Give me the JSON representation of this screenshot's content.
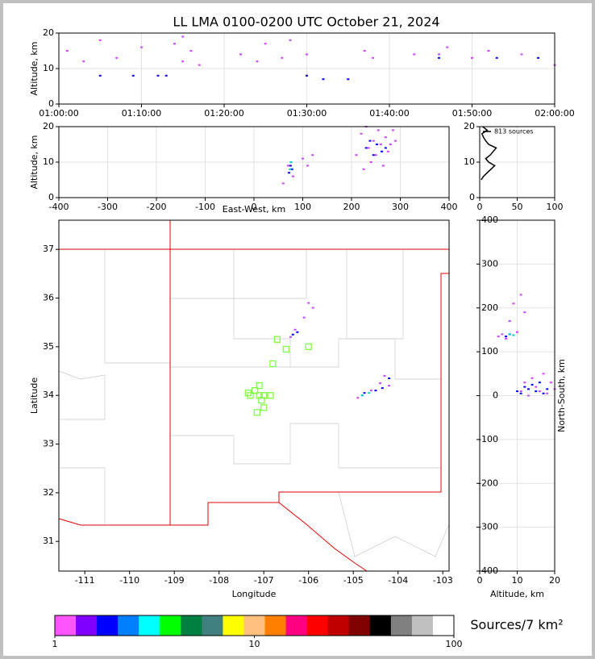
{
  "chart_data": [
    {
      "type": "scatter",
      "title": "LL LMA 0100-0200 UTC October 21, 2024",
      "y_label": "Altitude, km",
      "xlim": [
        0,
        60
      ],
      "xticks": [
        {
          "value": 0,
          "label": "01:00:00"
        },
        {
          "value": 10,
          "label": "01:10:00"
        },
        {
          "value": 20,
          "label": "01:20:00"
        },
        {
          "value": 30,
          "label": "01:30:00"
        },
        {
          "value": 40,
          "label": "01:40:00"
        },
        {
          "value": 50,
          "label": "01:50:00"
        },
        {
          "value": 60,
          "label": "02:00:00"
        }
      ],
      "ylim": [
        0,
        20
      ],
      "yticks": [
        0,
        10,
        20
      ],
      "grid": true,
      "series": [
        {
          "color": "#cc44ff",
          "x": [
            1,
            3,
            5,
            7,
            10,
            14,
            15,
            15,
            16,
            17,
            22,
            24,
            25,
            27,
            28,
            30,
            37,
            38,
            43,
            46,
            47,
            50,
            52,
            56,
            60
          ],
          "values": [
            15,
            12,
            18,
            13,
            16,
            17,
            12,
            19,
            15,
            11,
            14,
            12,
            17,
            13,
            18,
            14,
            15,
            13,
            14,
            14,
            16,
            13,
            15,
            14,
            11
          ]
        },
        {
          "color": "#0000ff",
          "x": [
            5,
            9,
            12,
            13,
            30,
            32,
            35,
            46,
            53,
            58
          ],
          "values": [
            8,
            8,
            8,
            8,
            8,
            7,
            7,
            13,
            13,
            13
          ]
        }
      ]
    },
    {
      "type": "scatter",
      "x_label": "East-West, km",
      "y_label": "Altitude, km",
      "xlim": [
        -400,
        400
      ],
      "xticks": [
        -400,
        -300,
        -200,
        -100,
        0,
        100,
        200,
        300,
        400
      ],
      "ylim": [
        0,
        20
      ],
      "yticks": [
        0,
        10,
        20
      ],
      "grid": true,
      "series": [
        {
          "color": "#cc44ff",
          "x": [
            60,
            70,
            80,
            100,
            110,
            120,
            210,
            220,
            225,
            230,
            235,
            240,
            245,
            250,
            255,
            260,
            265,
            270,
            275,
            280,
            285,
            290
          ],
          "values": [
            4,
            9,
            6,
            11,
            9,
            12,
            12,
            18,
            8,
            20,
            14,
            10,
            16,
            12,
            19,
            15,
            9,
            17,
            13,
            15,
            19,
            16
          ]
        },
        {
          "color": "#0000ff",
          "x": [
            72,
            75,
            78,
            230,
            238,
            245,
            252,
            262,
            270
          ],
          "values": [
            7,
            9,
            8,
            14,
            16,
            12,
            15,
            13,
            14
          ]
        },
        {
          "color": "#00cccc",
          "x": [
            74,
            76
          ],
          "values": [
            8,
            10
          ]
        }
      ]
    },
    {
      "type": "profile",
      "annotation": "813 sources",
      "color": "#000000",
      "xlim": [
        0,
        100
      ],
      "xticks": [
        0,
        50,
        100
      ],
      "ylim": [
        0,
        20
      ],
      "yticks": [
        0,
        10,
        20
      ],
      "grid": true,
      "y": [
        5,
        6,
        7,
        8,
        9,
        10,
        11,
        12,
        13,
        14,
        15,
        16,
        17,
        18,
        19,
        20
      ],
      "values": [
        2,
        5,
        10,
        15,
        20,
        12,
        8,
        14,
        18,
        22,
        12,
        8,
        5,
        3,
        10,
        4
      ]
    },
    {
      "type": "map",
      "x_label": "Longitude",
      "y_label": "Latitude",
      "xlim": [
        -111.58,
        -102.86
      ],
      "xticks": [
        -111,
        -110,
        -109,
        -108,
        -107,
        -106,
        -105,
        -104,
        -103
      ],
      "ylim": [
        30.39,
        37.6
      ],
      "yticks": [
        31,
        32,
        33,
        34,
        35,
        36,
        37
      ],
      "grid": false,
      "series": [
        {
          "color": "#cc44ff",
          "x": [
            -106.4,
            -106.3,
            -106.1,
            -106.0,
            -105.9,
            -104.9,
            -104.8,
            -104.6,
            -104.4,
            -104.3,
            -104.2
          ],
          "values": [
            35.2,
            35.35,
            35.6,
            35.9,
            35.8,
            33.95,
            34.0,
            34.1,
            34.25,
            34.4,
            34.2
          ]
        },
        {
          "color": "#0000ff",
          "x": [
            -106.35,
            -106.25,
            -104.75,
            -104.5,
            -104.35,
            -104.2
          ],
          "values": [
            35.25,
            35.3,
            34.05,
            34.1,
            34.15,
            34.35
          ]
        },
        {
          "color": "#00cccc",
          "x": [
            -104.8,
            -104.65
          ],
          "values": [
            34.0,
            34.05
          ]
        }
      ],
      "stations": {
        "color": "#80ff40",
        "x": [
          -107.3,
          -107.2,
          -107.1,
          -107.0,
          -107.05,
          -107.15,
          -106.8,
          -106.7,
          -106.5,
          -106.0,
          -107.0,
          -107.35,
          -106.85,
          -107.1
        ],
        "values": [
          34.0,
          34.1,
          34.2,
          34.0,
          33.9,
          33.65,
          34.65,
          35.15,
          34.95,
          35.0,
          33.75,
          34.05,
          34.0,
          34.0
        ]
      }
    },
    {
      "type": "scatter",
      "x_label": "Altitude, km",
      "y_label": "North-South, km",
      "xlim": [
        0,
        20
      ],
      "xticks": [
        0,
        10,
        20
      ],
      "ylim": [
        -400,
        400
      ],
      "yticks": [
        -400,
        -300,
        -200,
        -100,
        0,
        100,
        200,
        300,
        400
      ],
      "grid": true,
      "series": [
        {
          "color": "#cc44ff",
          "x": [
            5,
            6,
            7,
            8,
            9,
            10,
            11,
            12,
            13,
            14,
            15,
            16,
            17,
            18,
            19,
            20,
            11,
            12
          ],
          "values": [
            135,
            140,
            130,
            170,
            210,
            145,
            10,
            30,
            0,
            40,
            20,
            10,
            50,
            5,
            30,
            15,
            230,
            190
          ]
        },
        {
          "color": "#0000ff",
          "x": [
            7,
            8,
            10,
            11,
            12,
            13,
            14,
            15,
            16,
            17,
            18
          ],
          "values": [
            135,
            140,
            10,
            5,
            20,
            15,
            25,
            10,
            30,
            5,
            15
          ]
        },
        {
          "color": "#00cccc",
          "x": [
            8,
            9
          ],
          "values": [
            140,
            138
          ]
        }
      ]
    },
    {
      "type": "colorbar",
      "label": "Sources/7 km²",
      "log": true,
      "xlim": [
        1,
        100
      ],
      "xticks": [
        1,
        10,
        100
      ],
      "colors": [
        "#ff55ff",
        "#8000ff",
        "#0000ff",
        "#0080ff",
        "#00ffff",
        "#00ff00",
        "#008040",
        "#408080",
        "#ffff00",
        "#ffc080",
        "#ff8000",
        "#ff0080",
        "#ff0000",
        "#c00000",
        "#800000",
        "#000000",
        "#808080",
        "#c0c0c0",
        "#ffffff"
      ]
    }
  ]
}
